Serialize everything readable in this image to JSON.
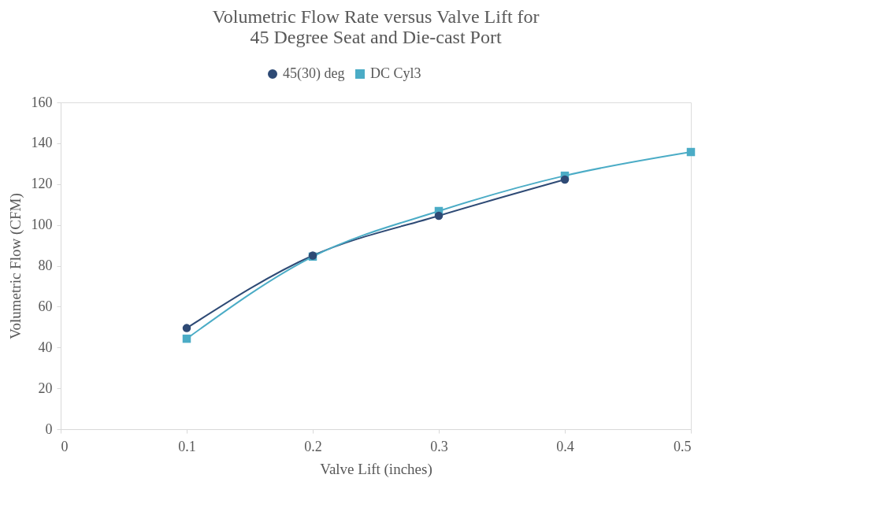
{
  "chart_data": {
    "type": "line",
    "title": [
      "Volumetric Flow Rate versus Valve Lift for",
      "45 Degree Seat and Die-cast Port"
    ],
    "xlabel": "Valve Lift (inches)",
    "ylabel": "Volumetric Flow (CFM)",
    "xlim": [
      0,
      0.5
    ],
    "xticks": [
      0,
      0.1,
      0.2,
      0.3,
      0.4,
      0.5
    ],
    "ylim": [
      0,
      160
    ],
    "yticks": [
      0,
      20,
      40,
      60,
      80,
      100,
      120,
      140,
      160
    ],
    "grid": false,
    "legend": "top",
    "line_style": "solid",
    "series": [
      {
        "name": "45(30) deg",
        "color": "#2e4a75",
        "marker": "circle",
        "x": [
          0.1,
          0.2,
          0.3,
          0.4
        ],
        "values": [
          49.5,
          85,
          104.5,
          122.2
        ]
      },
      {
        "name": "DC Cyl3",
        "color": "#4bacc6",
        "marker": "square",
        "x": [
          0.1,
          0.2,
          0.3,
          0.4,
          0.5
        ],
        "values": [
          44.3,
          84.5,
          106.8,
          124.1,
          135.7
        ]
      }
    ]
  }
}
